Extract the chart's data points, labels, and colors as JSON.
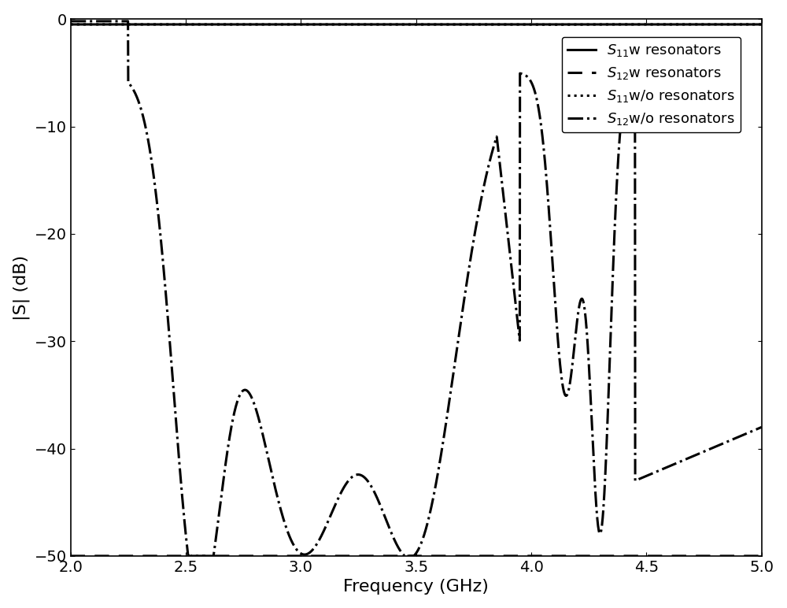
{
  "xlim": [
    2.0,
    5.0
  ],
  "ylim": [
    -50,
    0
  ],
  "xlabel": "Frequency (GHz)",
  "ylabel": "|S| (dB)",
  "xticks": [
    2.0,
    2.5,
    3.0,
    3.5,
    4.0,
    4.5,
    5.0
  ],
  "yticks": [
    0,
    -10,
    -20,
    -30,
    -40,
    -50
  ],
  "legend": [
    {
      "label": "S$_{11}$w resonators",
      "linestyle": "solid",
      "linewidth": 2.2,
      "color": "#000000"
    },
    {
      "label": "S$_{12}$w resonators",
      "linestyle": "dashed",
      "linewidth": 2.2,
      "color": "#000000"
    },
    {
      "label": "S$_{11}$w/o resonators",
      "linestyle": "dotted",
      "linewidth": 2.2,
      "color": "#000000"
    },
    {
      "label": "S$_{12}$w/o resonators",
      "linestyle": "dashdot",
      "linewidth": 2.2,
      "color": "#000000"
    }
  ],
  "background_color": "#ffffff",
  "title_fontsize": 14,
  "label_fontsize": 16,
  "tick_fontsize": 14,
  "legend_fontsize": 13
}
